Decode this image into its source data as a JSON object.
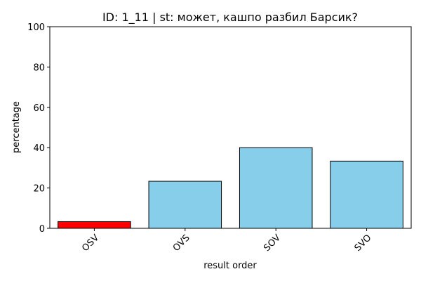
{
  "chart_data": {
    "type": "bar",
    "title": "ID: 1_11 | st: может, кашпо разбил Барсик?",
    "xlabel": "result order",
    "ylabel": "percentage",
    "categories": [
      "OSV",
      "OVS",
      "SOV",
      "SVO"
    ],
    "values": [
      3.33,
      23.33,
      40.0,
      33.33
    ],
    "bar_colors": [
      "#ff0000",
      "#87ceeb",
      "#87ceeb",
      "#87ceeb"
    ],
    "edge_color": "#000000",
    "ylim": [
      0,
      100
    ],
    "yticks": [
      "0",
      "20",
      "40",
      "60",
      "80",
      "100"
    ],
    "grid": false,
    "legend": "none",
    "xtick_rotation": 45
  }
}
